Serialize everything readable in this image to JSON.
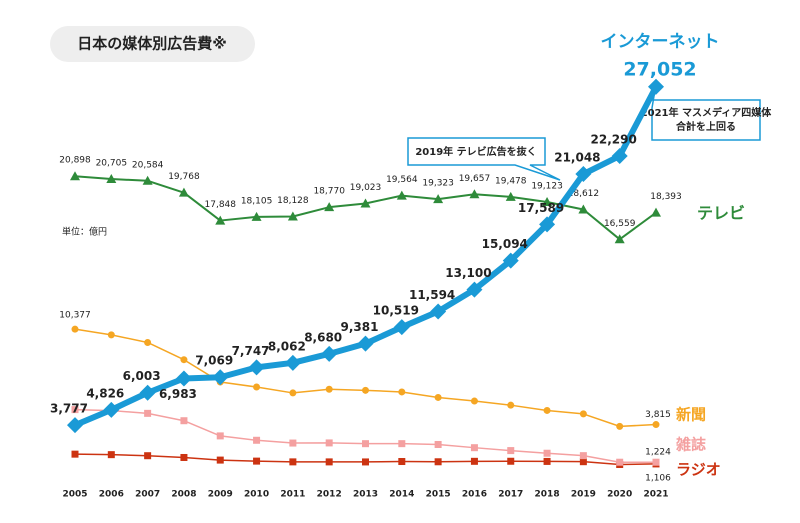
{
  "chart_data": {
    "type": "line",
    "title": "日本の媒体別広告費※",
    "unit_label": "単位：億円",
    "categories": [
      "2005",
      "2006",
      "2007",
      "2008",
      "2009",
      "2010",
      "2011",
      "2012",
      "2013",
      "2014",
      "2015",
      "2016",
      "2017",
      "2018",
      "2019",
      "2020",
      "2021"
    ],
    "ylim": [
      0,
      28000
    ],
    "series": [
      {
        "name": "インターネット",
        "color": "#1a9ad6",
        "marker": "diamond",
        "values": [
          3777,
          4826,
          6003,
          6983,
          7069,
          7747,
          8062,
          8680,
          9381,
          10519,
          11594,
          13100,
          15094,
          17589,
          21048,
          22290,
          27052
        ],
        "value_labels": [
          "3,777",
          "4,826",
          "6,003",
          "6,983",
          "7,069",
          "7,747",
          "8,062",
          "8,680",
          "9,381",
          "10,519",
          "11,594",
          "13,100",
          "15,094",
          "17,589",
          "21,048",
          "22,290",
          "27,052"
        ]
      },
      {
        "name": "テレビ",
        "color": "#2e8b3a",
        "marker": "triangle",
        "values": [
          20898,
          20705,
          20584,
          19768,
          17848,
          18105,
          18128,
          18770,
          19023,
          19564,
          19323,
          19657,
          19478,
          19123,
          18612,
          16559,
          18393
        ],
        "value_labels": [
          "20,898",
          "20,705",
          "20,584",
          "19,768",
          "17,848",
          "18,105",
          "18,128",
          "18,770",
          "19,023",
          "19,564",
          "19,323",
          "19,657",
          "19,478",
          "19,123",
          "18,612",
          "16,559",
          "18,393"
        ]
      },
      {
        "name": "新聞",
        "color": "#f5a623",
        "marker": "circle",
        "values": [
          10377,
          9986,
          9462,
          8276,
          6739,
          6396,
          5990,
          6242,
          6170,
          6057,
          5679,
          5431,
          5147,
          4784,
          4547,
          3688,
          3815
        ],
        "value_labels": [
          "10,377",
          null,
          null,
          null,
          null,
          null,
          null,
          null,
          null,
          null,
          null,
          null,
          null,
          null,
          null,
          null,
          "3,815"
        ]
      },
      {
        "name": "雑誌",
        "color": "#f4a0a0",
        "marker": "square",
        "values": [
          4842,
          4777,
          4585,
          4078,
          3034,
          2733,
          2542,
          2551,
          2499,
          2500,
          2443,
          2223,
          2023,
          1841,
          1675,
          1223,
          1224
        ],
        "value_labels": [
          null,
          null,
          null,
          null,
          null,
          null,
          null,
          null,
          null,
          null,
          null,
          null,
          null,
          null,
          null,
          null,
          "1,224"
        ]
      },
      {
        "name": "ラジオ",
        "color": "#cc3311",
        "marker": "square",
        "values": [
          1778,
          1744,
          1671,
          1549,
          1370,
          1299,
          1247,
          1246,
          1243,
          1272,
          1254,
          1285,
          1290,
          1278,
          1260,
          1066,
          1106
        ],
        "value_labels": [
          null,
          null,
          null,
          null,
          null,
          null,
          null,
          null,
          null,
          null,
          null,
          null,
          null,
          null,
          null,
          null,
          "1,106"
        ]
      }
    ],
    "annotations": [
      {
        "lines": [
          "2019年 テレビ広告を抜く"
        ]
      },
      {
        "lines": [
          "2021年 マスメディア四媒体",
          "合計を上回る"
        ]
      }
    ]
  }
}
